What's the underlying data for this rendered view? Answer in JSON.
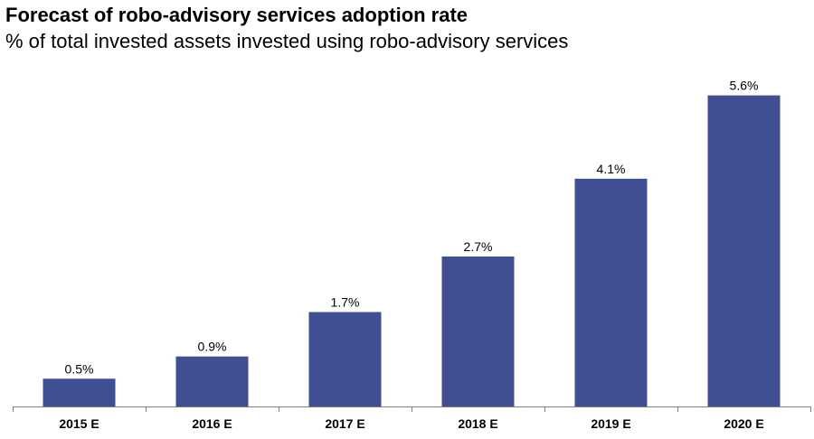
{
  "chart_data": {
    "type": "bar",
    "title": "Forecast of robo-advisory services adoption rate",
    "subtitle": "% of total invested assets invested using robo-advisory services",
    "categories": [
      "2015 E",
      "2016 E",
      "2017 E",
      "2018 E",
      "2019 E",
      "2020 E"
    ],
    "values": [
      0.5,
      0.9,
      1.7,
      2.7,
      4.1,
      5.6
    ],
    "data_labels": [
      "0.5%",
      "0.9%",
      "1.7%",
      "2.7%",
      "4.1%",
      "5.6%"
    ],
    "unit": "%",
    "ylim": [
      0,
      6.0
    ],
    "grid": false,
    "legend": "none",
    "bar_color": "#404E94",
    "axis_color": "#7F7F7F"
  }
}
